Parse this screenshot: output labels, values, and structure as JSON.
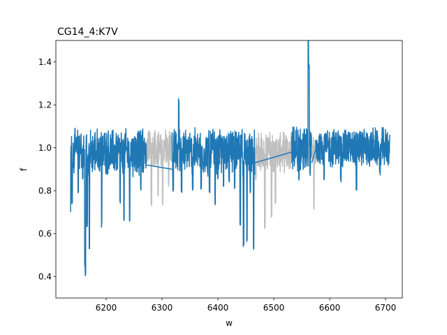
{
  "chart_data": {
    "type": "line",
    "title": "CG14_4:K7V",
    "xlabel": "w",
    "ylabel": "f",
    "xlim": [
      6110,
      6730
    ],
    "ylim": [
      0.3,
      1.5
    ],
    "xticks": [
      6200,
      6300,
      6400,
      6500,
      6600,
      6700
    ],
    "yticks": [
      0.4,
      0.6,
      0.8,
      1.0,
      1.2,
      1.4
    ],
    "xtick_labels": [
      "6200",
      "6300",
      "6400",
      "6500",
      "6600",
      "6700"
    ],
    "ytick_labels": [
      "0.4",
      "0.6",
      "0.8",
      "1.0",
      "1.2",
      "1.4"
    ],
    "grid": false,
    "series": [
      {
        "role": "masked",
        "color": "#bfbfbf",
        "segments": [
          {
            "x_range": [
              6272,
              6318
            ],
            "mean": 1.0,
            "spread": 0.1
          },
          {
            "x_range": [
              6466,
              6532
            ],
            "mean": 0.98,
            "spread": 0.1
          },
          {
            "x_range": [
              6560,
              6590
            ],
            "mean": 0.99,
            "spread": 0.08
          }
        ],
        "features": [
          {
            "x": 6281,
            "y": 0.74
          },
          {
            "x": 6293,
            "y": 0.78
          },
          {
            "x": 6301,
            "y": 0.74
          },
          {
            "x": 6312,
            "y": 0.83
          },
          {
            "x": 6468,
            "y": 0.86
          },
          {
            "x": 6484,
            "y": 0.63
          },
          {
            "x": 6496,
            "y": 0.68
          },
          {
            "x": 6503,
            "y": 0.75
          },
          {
            "x": 6572,
            "y": 0.72
          }
        ]
      },
      {
        "role": "spectrum",
        "color": "#1f77b4",
        "segments": [
          {
            "x_range": [
              6136,
              6272
            ],
            "mean": 0.98,
            "spread": 0.12
          },
          {
            "x_range": [
              6318,
              6466
            ],
            "mean": 0.98,
            "spread": 0.12
          },
          {
            "x_range": [
              6532,
              6568
            ],
            "mean": 0.99,
            "spread": 0.12
          },
          {
            "x_range": [
              6575,
              6708
            ],
            "mean": 1.0,
            "spread": 0.1
          }
        ],
        "bridges": [
          {
            "from": [
              6272,
              0.92
            ],
            "to": [
              6318,
              0.9
            ]
          },
          {
            "from": [
              6466,
              0.93
            ],
            "to": [
              6532,
              0.98
            ]
          },
          {
            "from": [
              6568,
              0.93
            ],
            "to": [
              6578,
              1.02
            ]
          }
        ],
        "features": [
          {
            "x": 6136,
            "y": 0.7
          },
          {
            "x": 6139,
            "y": 0.75
          },
          {
            "x": 6150,
            "y": 0.8
          },
          {
            "x": 6158,
            "y": 0.86
          },
          {
            "x": 6162,
            "y": 0.45
          },
          {
            "x": 6163,
            "y": 0.41
          },
          {
            "x": 6166,
            "y": 0.64
          },
          {
            "x": 6170,
            "y": 0.53
          },
          {
            "x": 6192,
            "y": 0.64
          },
          {
            "x": 6225,
            "y": 0.75
          },
          {
            "x": 6232,
            "y": 0.67
          },
          {
            "x": 6242,
            "y": 0.66
          },
          {
            "x": 6262,
            "y": 0.81
          },
          {
            "x": 6320,
            "y": 0.8
          },
          {
            "x": 6330,
            "y": 1.22
          },
          {
            "x": 6335,
            "y": 0.8
          },
          {
            "x": 6355,
            "y": 0.81
          },
          {
            "x": 6370,
            "y": 0.81
          },
          {
            "x": 6385,
            "y": 0.8
          },
          {
            "x": 6395,
            "y": 0.74
          },
          {
            "x": 6400,
            "y": 0.86
          },
          {
            "x": 6410,
            "y": 0.82
          },
          {
            "x": 6420,
            "y": 0.85
          },
          {
            "x": 6430,
            "y": 0.82
          },
          {
            "x": 6440,
            "y": 0.64
          },
          {
            "x": 6446,
            "y": 0.54
          },
          {
            "x": 6452,
            "y": 0.57
          },
          {
            "x": 6458,
            "y": 0.79
          },
          {
            "x": 6464,
            "y": 0.53
          },
          {
            "x": 6545,
            "y": 0.85
          },
          {
            "x": 6562,
            "y": 1.5
          },
          {
            "x": 6563,
            "y": 1.38
          },
          {
            "x": 6565,
            "y": 0.88
          },
          {
            "x": 6590,
            "y": 0.86
          },
          {
            "x": 6620,
            "y": 0.85
          },
          {
            "x": 6648,
            "y": 0.8
          },
          {
            "x": 6690,
            "y": 0.88
          }
        ]
      }
    ]
  }
}
